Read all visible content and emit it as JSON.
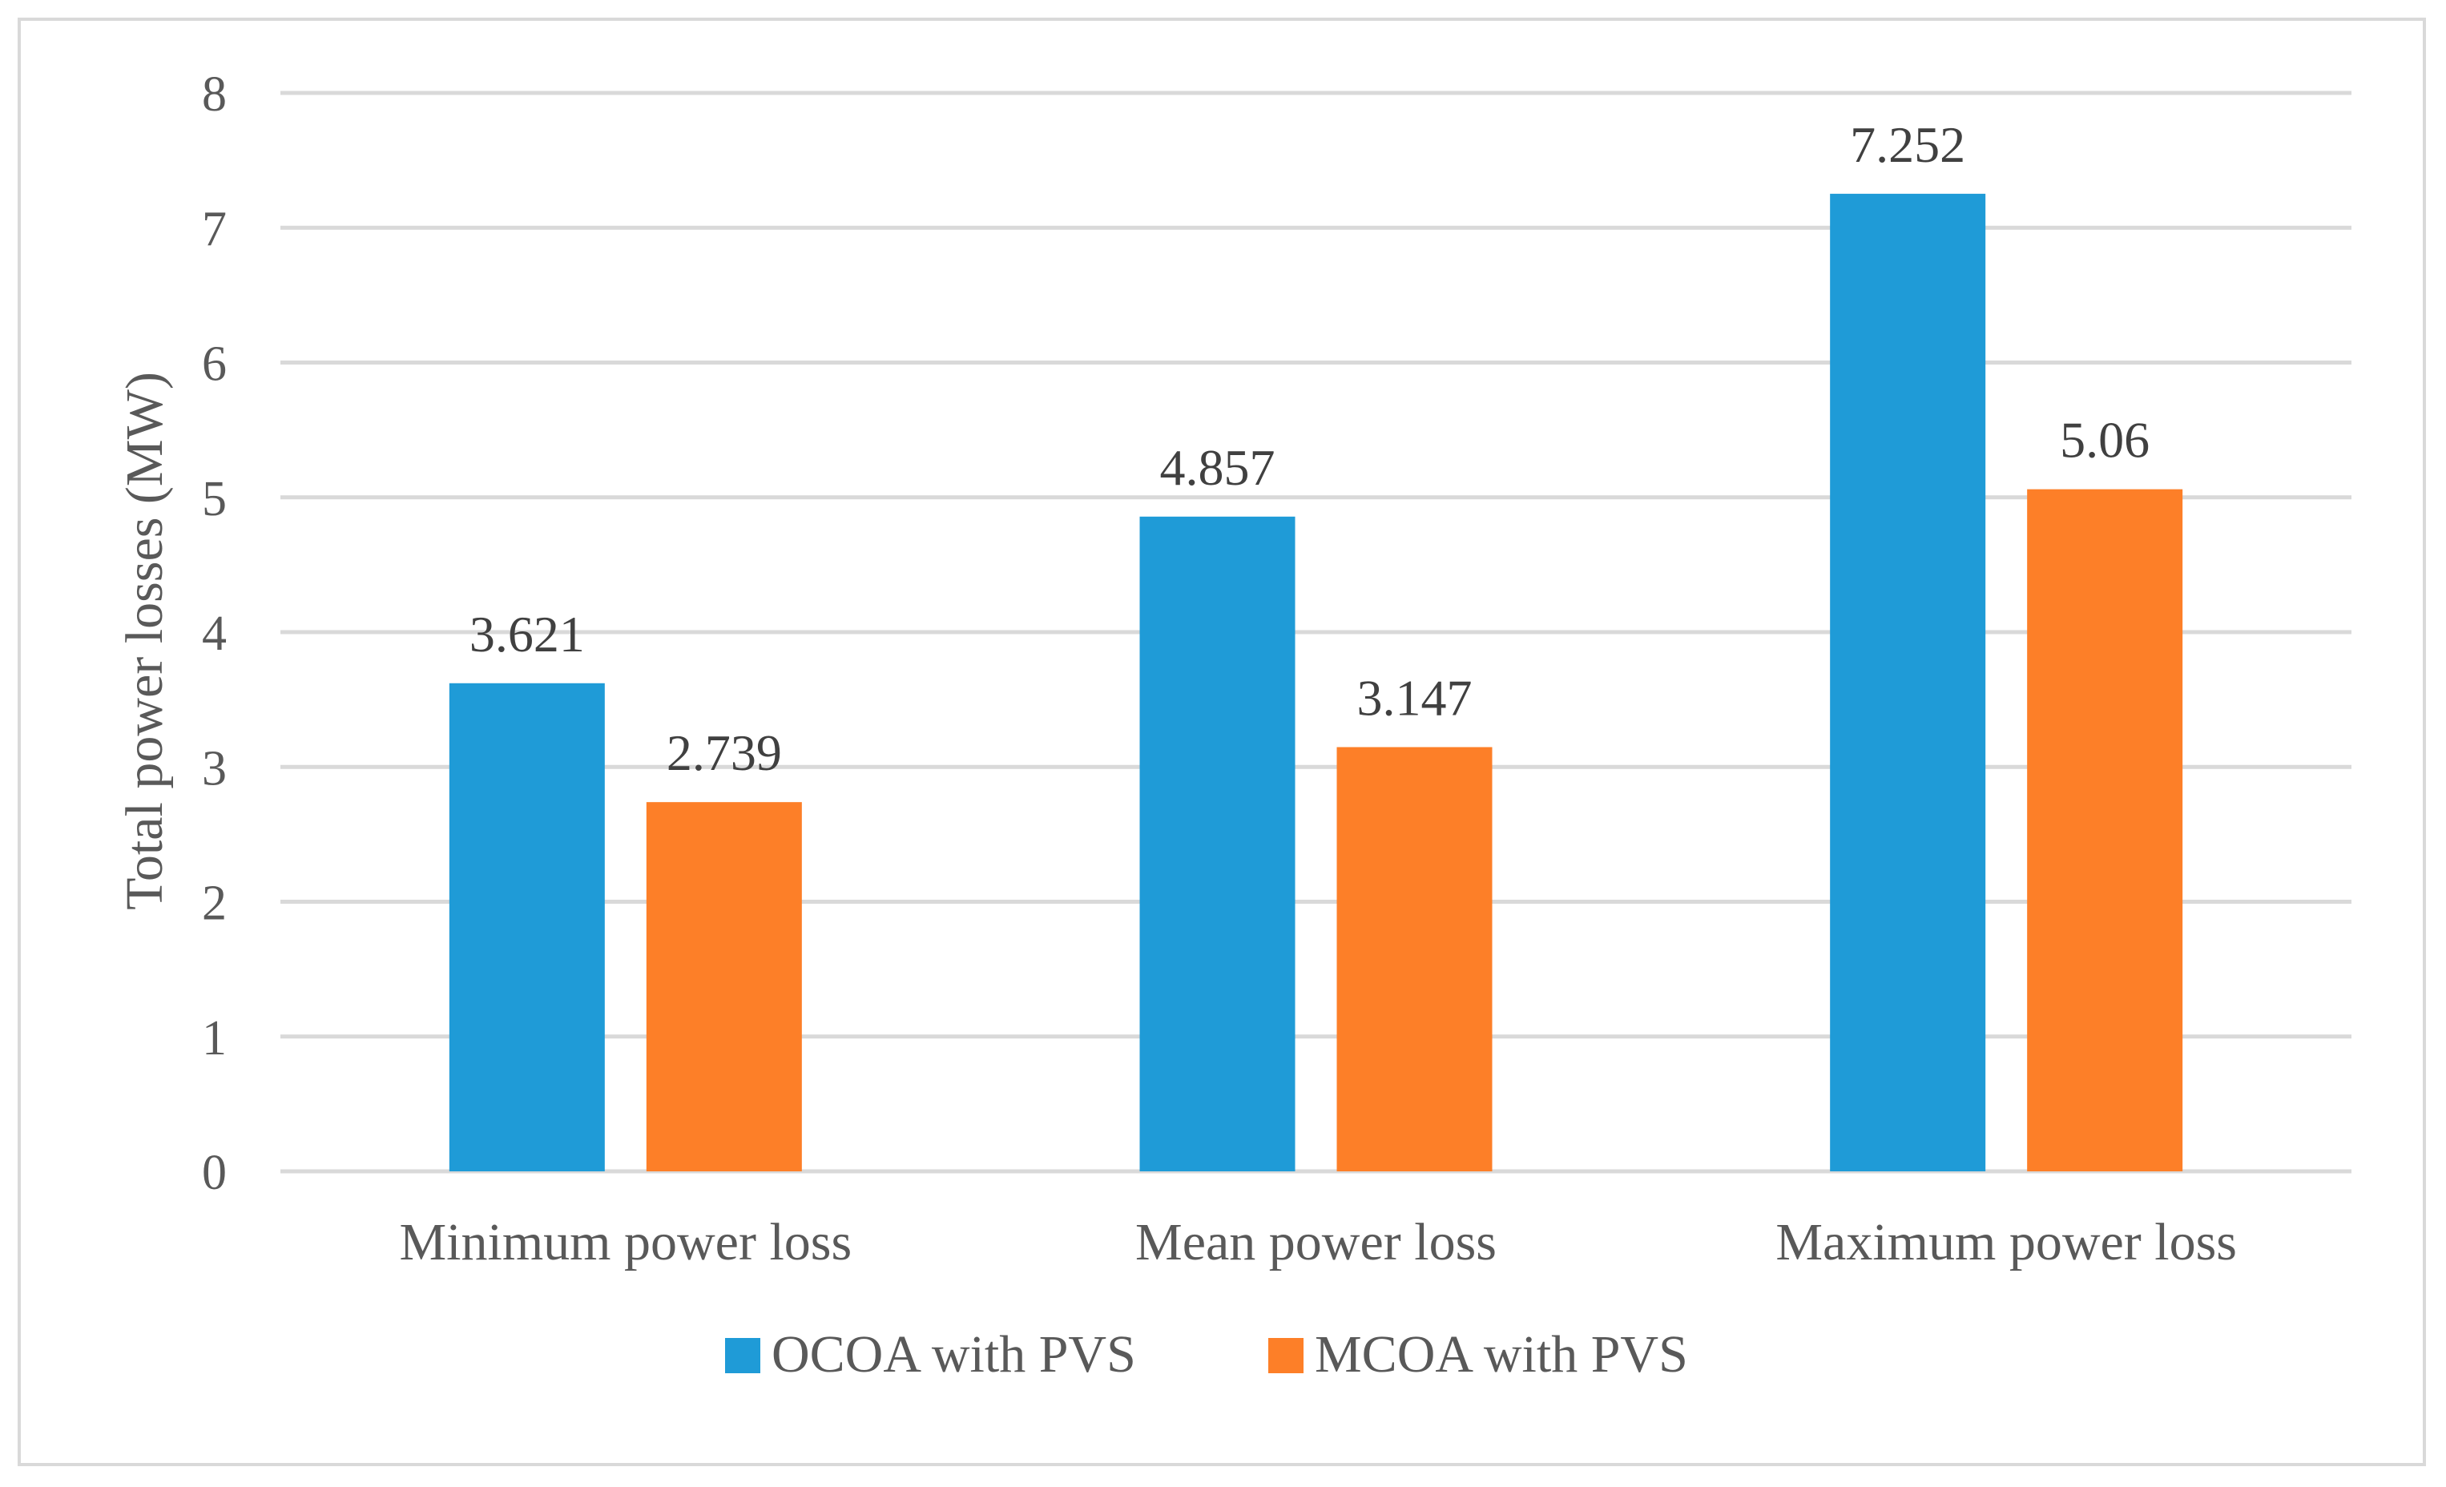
{
  "chart_data": {
    "type": "bar",
    "title": "",
    "xlabel": "",
    "ylabel": "Total power losses (MW)",
    "ylim": [
      0,
      8
    ],
    "yticks": [
      0,
      1,
      2,
      3,
      4,
      5,
      6,
      7,
      8
    ],
    "grid": true,
    "legend_position": "bottom",
    "categories": [
      "Minimum power loss",
      "Mean power loss",
      "Maximum power loss"
    ],
    "series": [
      {
        "name": "OCOA with PVS",
        "color": "#1f9bd7",
        "values": [
          3.621,
          4.857,
          7.252
        ],
        "labels": [
          "3.621",
          "4.857",
          "7.252"
        ]
      },
      {
        "name": "MCOA with PVS",
        "color": "#fd7f28",
        "values": [
          2.739,
          3.147,
          5.06
        ],
        "labels": [
          "2.739",
          "3.147",
          "5.06"
        ]
      }
    ]
  }
}
